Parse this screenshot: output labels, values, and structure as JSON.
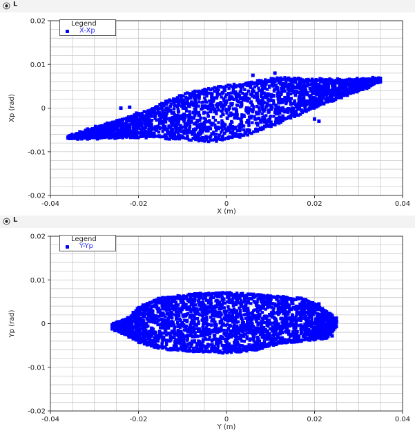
{
  "plots": [
    {
      "panel_label": "L",
      "legend": {
        "title": "Legend",
        "entry": "X-Xp"
      },
      "xlabel": "X (m)",
      "ylabel": "Xp (rad)"
    },
    {
      "panel_label": "L",
      "legend": {
        "title": "Legend",
        "entry": "Y-Yp"
      },
      "xlabel": "Y (m)",
      "ylabel": "Yp (rad)"
    }
  ],
  "colors": {
    "points": "#0000ff",
    "grid": "#c8c8c8",
    "frame": "#333333"
  },
  "chart_data": [
    {
      "type": "scatter",
      "series": [
        {
          "name": "X-Xp",
          "extent": {
            "x_min": -0.036,
            "x_max": 0.035,
            "upper_edge": [
              [
                -0.036,
                -0.0065
              ],
              [
                -0.03,
                -0.0045
              ],
              [
                -0.022,
                -0.002
              ],
              [
                -0.016,
                0.0003
              ],
              [
                -0.01,
                0.003
              ],
              [
                -0.003,
                0.0045
              ],
              [
                0.004,
                0.0055
              ],
              [
                0.012,
                0.0068
              ],
              [
                0.02,
                0.0065
              ],
              [
                0.028,
                0.0065
              ],
              [
                0.035,
                0.0068
              ]
            ],
            "lower_edge": [
              [
                -0.036,
                -0.007
              ],
              [
                -0.028,
                -0.0068
              ],
              [
                -0.018,
                -0.0065
              ],
              [
                -0.01,
                -0.007
              ],
              [
                -0.003,
                -0.0075
              ],
              [
                0.004,
                -0.0062
              ],
              [
                0.01,
                -0.004
              ],
              [
                0.016,
                -0.0015
              ],
              [
                0.022,
                0.001
              ],
              [
                0.03,
                0.004
              ],
              [
                0.035,
                0.006
              ]
            ],
            "outliers": [
              [
                -0.024,
                0
              ],
              [
                -0.022,
                0.0002
              ],
              [
                0.006,
                0.0075
              ],
              [
                0.011,
                0.008
              ],
              [
                0.02,
                -0.0025
              ],
              [
                0.021,
                -0.003
              ],
              [
                -0.036,
                -0.0068
              ]
            ]
          }
        }
      ],
      "xlim": [
        -0.04,
        0.04
      ],
      "ylim": [
        -0.02,
        0.02
      ],
      "xticks": [
        "-0.04",
        "-0.02",
        "0",
        "0.02",
        "0.04"
      ],
      "yticks": [
        "0.02",
        "0.01",
        "0",
        "-0.01",
        "-0.02"
      ],
      "grid": true,
      "legend_position": "top-left"
    },
    {
      "type": "scatter",
      "series": [
        {
          "name": "Y-Yp",
          "extent": {
            "x_min": -0.026,
            "x_max": 0.025,
            "upper_edge": [
              [
                -0.026,
                -0.0002
              ],
              [
                -0.022,
                0.0015
              ],
              [
                -0.02,
                0.0035
              ],
              [
                -0.016,
                0.0055
              ],
              [
                -0.008,
                0.0065
              ],
              [
                -0.002,
                0.007
              ],
              [
                0.006,
                0.0065
              ],
              [
                0.012,
                0.006
              ],
              [
                0.018,
                0.0055
              ],
              [
                0.02,
                0.0045
              ],
              [
                0.025,
                0.001
              ]
            ],
            "lower_edge": [
              [
                -0.026,
                -0.001
              ],
              [
                -0.022,
                -0.003
              ],
              [
                -0.02,
                -0.004
              ],
              [
                -0.015,
                -0.0055
              ],
              [
                -0.008,
                -0.0062
              ],
              [
                -0.001,
                -0.0065
              ],
              [
                0.006,
                -0.006
              ],
              [
                0.012,
                -0.0045
              ],
              [
                0.02,
                -0.0035
              ],
              [
                0.023,
                -0.003
              ],
              [
                0.025,
                -0.0005
              ]
            ],
            "outliers": [
              [
                -0.023,
                -0.002
              ],
              [
                0.024,
                -0.0028
              ],
              [
                0.021,
                0.0045
              ],
              [
                0.025,
                0.0005
              ]
            ]
          }
        }
      ],
      "xlim": [
        -0.04,
        0.04
      ],
      "ylim": [
        -0.02,
        0.02
      ],
      "xticks": [
        "-0.04",
        "-0.02",
        "0",
        "0.02",
        "0.04"
      ],
      "yticks": [
        "0.02",
        "0.01",
        "0",
        "-0.01",
        "-0.02"
      ],
      "grid": true,
      "legend_position": "top-left"
    }
  ]
}
